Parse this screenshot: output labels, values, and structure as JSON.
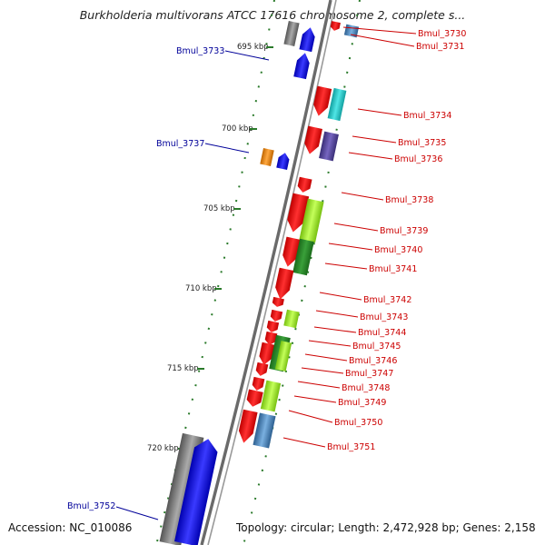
{
  "title": "Burkholderia multivorans ATCC 17616 chromosome 2, complete s...",
  "footer": {
    "accession": "Accession: NC_010086",
    "topology": "Topology: circular; Length: 2,472,928 bp; Genes: 2,158"
  },
  "colors": {
    "forward_label": "#cc0000",
    "reverse_label": "#000099",
    "backbone": "#555555",
    "tick": "#2a7a2a",
    "gene_red": "#ee1111",
    "gene_blue": "#1a1aee",
    "gene_lime": "#99ee22",
    "gene_green": "#2a8a2a",
    "gene_cyan": "#22c8c8",
    "gene_purple": "#55449a",
    "gene_orange": "#ee8811",
    "gene_grey": "#777777",
    "gene_steel": "#4a86c0"
  },
  "scale": [
    {
      "label": "695 kbp"
    },
    {
      "label": "700 kbp"
    },
    {
      "label": "705 kbp"
    },
    {
      "label": "710 kbp"
    },
    {
      "label": "715 kbp"
    },
    {
      "label": "720 kbp"
    }
  ],
  "genes_forward": [
    {
      "name": "Bmul_3730"
    },
    {
      "name": "Bmul_3731"
    },
    {
      "name": "Bmul_3734"
    },
    {
      "name": "Bmul_3735"
    },
    {
      "name": "Bmul_3736"
    },
    {
      "name": "Bmul_3738"
    },
    {
      "name": "Bmul_3739"
    },
    {
      "name": "Bmul_3740"
    },
    {
      "name": "Bmul_3741"
    },
    {
      "name": "Bmul_3742"
    },
    {
      "name": "Bmul_3743"
    },
    {
      "name": "Bmul_3744"
    },
    {
      "name": "Bmul_3745"
    },
    {
      "name": "Bmul_3746"
    },
    {
      "name": "Bmul_3747"
    },
    {
      "name": "Bmul_3748"
    },
    {
      "name": "Bmul_3749"
    },
    {
      "name": "Bmul_3750"
    },
    {
      "name": "Bmul_3751"
    }
  ],
  "genes_reverse": [
    {
      "name": "Bmul_3733"
    },
    {
      "name": "Bmul_3737"
    },
    {
      "name": "Bmul_3752"
    }
  ]
}
